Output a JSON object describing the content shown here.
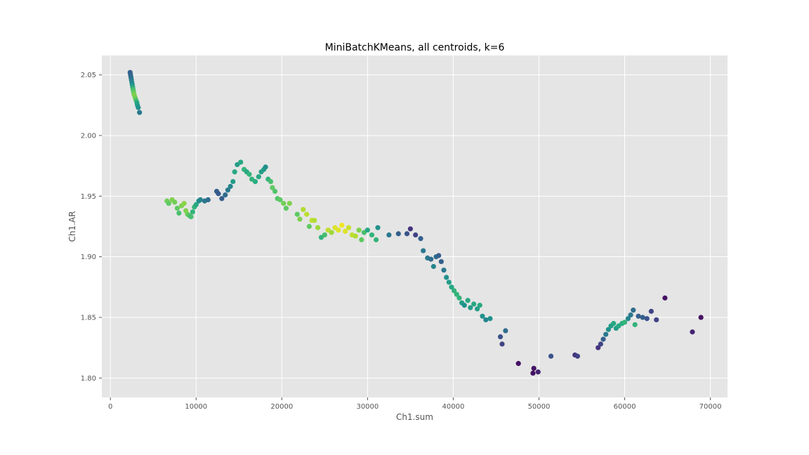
{
  "chart_data": {
    "type": "scatter",
    "title": "MiniBatchKMeans, all centroids, k=6",
    "xlabel": "Ch1.sum",
    "ylabel": "Ch1.AR",
    "xlim": [
      -1000,
      72000
    ],
    "ylim": [
      1.784,
      2.066
    ],
    "xticks": [
      0,
      10000,
      20000,
      30000,
      40000,
      50000,
      60000,
      70000
    ],
    "yticks": [
      1.8,
      1.85,
      1.9,
      1.95,
      2.0,
      2.05
    ],
    "xtick_labels": [
      "0",
      "10000",
      "20000",
      "30000",
      "40000",
      "50000",
      "60000",
      "70000"
    ],
    "ytick_labels": [
      "1.80",
      "1.85",
      "1.90",
      "1.95",
      "2.00",
      "2.05"
    ],
    "grid": true,
    "colormap": "viridis",
    "colormap_stops": [
      "#440154",
      "#472c7a",
      "#3b528b",
      "#2c728e",
      "#21918c",
      "#28ae80",
      "#5ec962",
      "#addc30",
      "#fde725"
    ],
    "point_color": "#1f77b4",
    "background": "#e5e5e5",
    "points": [
      [
        2300,
        2.052,
        0.3
      ],
      [
        2350,
        2.05,
        0.32
      ],
      [
        2400,
        2.048,
        0.35
      ],
      [
        2450,
        2.046,
        0.4
      ],
      [
        2500,
        2.044,
        0.45
      ],
      [
        2550,
        2.042,
        0.5
      ],
      [
        2600,
        2.04,
        0.6
      ],
      [
        2650,
        2.038,
        0.7
      ],
      [
        2700,
        2.036,
        0.75
      ],
      [
        2750,
        2.034,
        0.78
      ],
      [
        2800,
        2.033,
        0.8
      ],
      [
        2900,
        2.031,
        0.78
      ],
      [
        3000,
        2.029,
        0.7
      ],
      [
        3100,
        2.027,
        0.6
      ],
      [
        3150,
        2.025,
        0.55
      ],
      [
        3250,
        2.023,
        0.5
      ],
      [
        3400,
        2.019,
        0.4
      ],
      [
        6600,
        1.946,
        0.78
      ],
      [
        6800,
        1.944,
        0.75
      ],
      [
        7200,
        1.947,
        0.8
      ],
      [
        7500,
        1.945,
        0.78
      ],
      [
        7800,
        1.94,
        0.75
      ],
      [
        8000,
        1.936,
        0.7
      ],
      [
        8300,
        1.942,
        0.8
      ],
      [
        8600,
        1.944,
        0.82
      ],
      [
        8800,
        1.938,
        0.8
      ],
      [
        9000,
        1.935,
        0.78
      ],
      [
        9200,
        1.934,
        0.72
      ],
      [
        9400,
        1.933,
        0.7
      ],
      [
        9600,
        1.937,
        0.65
      ],
      [
        9800,
        1.941,
        0.65
      ],
      [
        10000,
        1.943,
        0.6
      ],
      [
        10300,
        1.946,
        0.5
      ],
      [
        10500,
        1.947,
        0.45
      ],
      [
        11000,
        1.946,
        0.4
      ],
      [
        11400,
        1.947,
        0.35
      ],
      [
        12400,
        1.954,
        0.3
      ],
      [
        12600,
        1.952,
        0.28
      ],
      [
        13000,
        1.948,
        0.3
      ],
      [
        13400,
        1.951,
        0.35
      ],
      [
        13700,
        1.955,
        0.4
      ],
      [
        14000,
        1.958,
        0.45
      ],
      [
        14300,
        1.962,
        0.55
      ],
      [
        14500,
        1.97,
        0.6
      ],
      [
        14800,
        1.976,
        0.55
      ],
      [
        15200,
        1.978,
        0.6
      ],
      [
        15600,
        1.972,
        0.65
      ],
      [
        15900,
        1.97,
        0.6
      ],
      [
        16200,
        1.968,
        0.65
      ],
      [
        16500,
        1.964,
        0.65
      ],
      [
        16900,
        1.962,
        0.62
      ],
      [
        17300,
        1.966,
        0.6
      ],
      [
        17600,
        1.97,
        0.55
      ],
      [
        17900,
        1.972,
        0.55
      ],
      [
        18100,
        1.974,
        0.5
      ],
      [
        18400,
        1.964,
        0.65
      ],
      [
        18700,
        1.962,
        0.7
      ],
      [
        18900,
        1.957,
        0.75
      ],
      [
        19200,
        1.954,
        0.72
      ],
      [
        19500,
        1.948,
        0.72
      ],
      [
        19800,
        1.947,
        0.75
      ],
      [
        20200,
        1.944,
        0.78
      ],
      [
        20500,
        1.94,
        0.75
      ],
      [
        20900,
        1.944,
        0.8
      ],
      [
        21800,
        1.935,
        0.75
      ],
      [
        22100,
        1.931,
        0.8
      ],
      [
        22500,
        1.939,
        0.88
      ],
      [
        22900,
        1.935,
        0.9
      ],
      [
        23200,
        1.925,
        0.75
      ],
      [
        23500,
        1.93,
        0.9
      ],
      [
        23800,
        1.93,
        0.88
      ],
      [
        24200,
        1.924,
        0.85
      ],
      [
        24600,
        1.916,
        0.65
      ],
      [
        25000,
        1.918,
        0.7
      ],
      [
        25400,
        1.922,
        0.9
      ],
      [
        25800,
        1.92,
        0.85
      ],
      [
        26200,
        1.924,
        0.95
      ],
      [
        26600,
        1.922,
        0.95
      ],
      [
        27000,
        1.926,
        0.98
      ],
      [
        27400,
        1.921,
        0.95
      ],
      [
        27800,
        1.924,
        0.92
      ],
      [
        28200,
        1.918,
        0.9
      ],
      [
        28600,
        1.917,
        0.88
      ],
      [
        29000,
        1.922,
        0.8
      ],
      [
        29300,
        1.914,
        0.75
      ],
      [
        29600,
        1.92,
        0.7
      ],
      [
        30000,
        1.922,
        0.6
      ],
      [
        30500,
        1.918,
        0.65
      ],
      [
        31200,
        1.924,
        0.5
      ],
      [
        31000,
        1.914,
        0.65
      ],
      [
        32500,
        1.918,
        0.4
      ],
      [
        33600,
        1.919,
        0.3
      ],
      [
        34600,
        1.919,
        0.25
      ],
      [
        35000,
        1.923,
        0.15
      ],
      [
        35600,
        1.918,
        0.2
      ],
      [
        36200,
        1.915,
        0.3
      ],
      [
        36500,
        1.905,
        0.4
      ],
      [
        37000,
        1.899,
        0.4
      ],
      [
        37400,
        1.898,
        0.35
      ],
      [
        37700,
        1.892,
        0.45
      ],
      [
        38000,
        1.9,
        0.35
      ],
      [
        38300,
        1.901,
        0.3
      ],
      [
        38600,
        1.896,
        0.3
      ],
      [
        38900,
        1.889,
        0.4
      ],
      [
        39200,
        1.883,
        0.5
      ],
      [
        39500,
        1.879,
        0.55
      ],
      [
        39800,
        1.875,
        0.6
      ],
      [
        40100,
        1.872,
        0.65
      ],
      [
        40400,
        1.869,
        0.65
      ],
      [
        40700,
        1.866,
        0.65
      ],
      [
        41000,
        1.862,
        0.55
      ],
      [
        41300,
        1.86,
        0.5
      ],
      [
        41700,
        1.864,
        0.6
      ],
      [
        42000,
        1.858,
        0.55
      ],
      [
        42400,
        1.861,
        0.6
      ],
      [
        42800,
        1.857,
        0.55
      ],
      [
        43100,
        1.86,
        0.6
      ],
      [
        43400,
        1.851,
        0.5
      ],
      [
        43800,
        1.848,
        0.45
      ],
      [
        44300,
        1.849,
        0.5
      ],
      [
        45500,
        1.834,
        0.25
      ],
      [
        45700,
        1.828,
        0.2
      ],
      [
        46100,
        1.839,
        0.35
      ],
      [
        47600,
        1.812,
        0.05
      ],
      [
        49400,
        1.808,
        0.05
      ],
      [
        49300,
        1.804,
        0.05
      ],
      [
        49900,
        1.805,
        0.1
      ],
      [
        51400,
        1.818,
        0.25
      ],
      [
        54200,
        1.819,
        0.15
      ],
      [
        54500,
        1.818,
        0.2
      ],
      [
        56900,
        1.825,
        0.15
      ],
      [
        57200,
        1.828,
        0.2
      ],
      [
        57500,
        1.832,
        0.3
      ],
      [
        57800,
        1.836,
        0.4
      ],
      [
        58100,
        1.84,
        0.5
      ],
      [
        58400,
        1.843,
        0.55
      ],
      [
        58700,
        1.845,
        0.6
      ],
      [
        59000,
        1.841,
        0.55
      ],
      [
        59300,
        1.843,
        0.6
      ],
      [
        59700,
        1.845,
        0.62
      ],
      [
        60000,
        1.846,
        0.65
      ],
      [
        60400,
        1.849,
        0.45
      ],
      [
        60700,
        1.852,
        0.4
      ],
      [
        61000,
        1.856,
        0.35
      ],
      [
        61200,
        1.844,
        0.65
      ],
      [
        61600,
        1.851,
        0.3
      ],
      [
        62100,
        1.85,
        0.3
      ],
      [
        62600,
        1.849,
        0.25
      ],
      [
        63100,
        1.855,
        0.2
      ],
      [
        63700,
        1.848,
        0.2
      ],
      [
        64700,
        1.866,
        0.05
      ],
      [
        67900,
        1.838,
        0.1
      ],
      [
        68900,
        1.85,
        0.05
      ]
    ]
  }
}
